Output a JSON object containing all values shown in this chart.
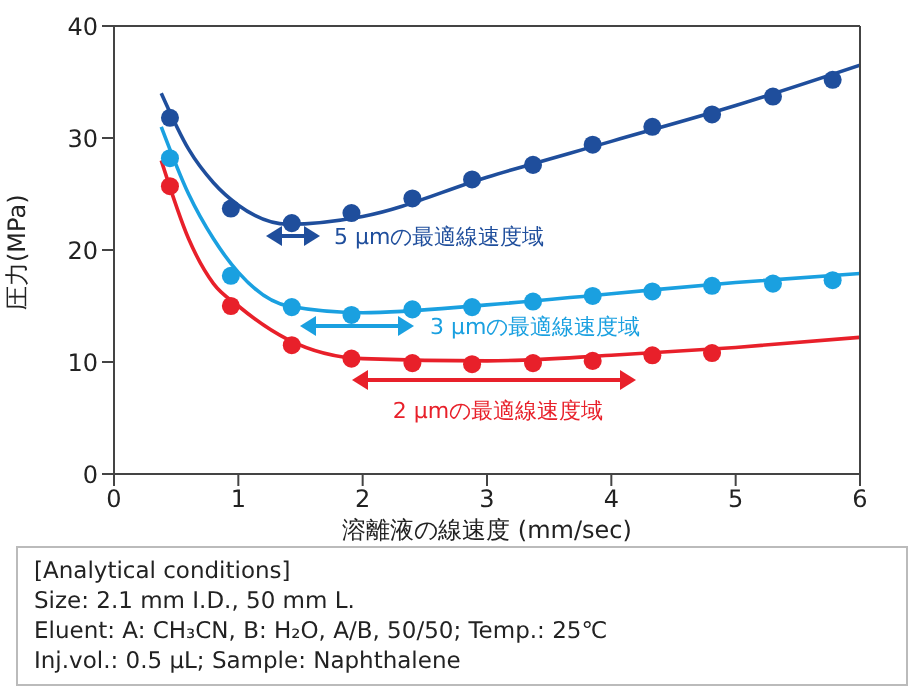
{
  "chart_data": {
    "type": "scatter",
    "xlabel": "溶離液の線速度 (mm/sec)",
    "ylabel": "圧力(MPa)",
    "xlim": [
      0,
      6
    ],
    "xticks": [
      0,
      1,
      2,
      3,
      4,
      5,
      6
    ],
    "ylim": [
      0,
      40
    ],
    "yticks": [
      0,
      10,
      20,
      30,
      40
    ],
    "series": [
      {
        "color": "#1f4e9c",
        "marker": "circle",
        "x": [
          0.45,
          0.94,
          1.43,
          1.91,
          2.4,
          2.88,
          3.37,
          3.85,
          4.33,
          4.81,
          5.3,
          5.78
        ],
        "values": [
          31.8,
          23.7,
          22.4,
          23.3,
          24.6,
          26.3,
          27.6,
          29.4,
          31.0,
          32.1,
          33.7,
          35.2
        ]
      },
      {
        "color": "#1aa0e0",
        "marker": "circle",
        "x": [
          0.45,
          0.94,
          1.43,
          1.91,
          2.4,
          2.88,
          3.37,
          3.85,
          4.33,
          4.81,
          5.3,
          5.78
        ],
        "values": [
          28.2,
          17.7,
          14.9,
          14.2,
          14.7,
          14.9,
          15.4,
          15.9,
          16.3,
          16.8,
          17.0,
          17.3
        ]
      },
      {
        "color": "#e8202a",
        "marker": "circle",
        "x": [
          0.45,
          0.94,
          1.43,
          1.91,
          2.4,
          2.88,
          3.37,
          3.85,
          4.33,
          4.81
        ],
        "values": [
          25.7,
          15.0,
          11.5,
          10.3,
          9.9,
          9.8,
          9.9,
          10.1,
          10.6,
          10.8
        ]
      },
      {
        "type": "line",
        "color": "#1f4e9c",
        "marker": "none",
        "x": [
          0.38,
          0.6,
          0.8,
          1.0,
          1.4,
          2,
          3,
          4,
          5,
          6
        ],
        "values": [
          34,
          29,
          26,
          24,
          22.3,
          23,
          26.5,
          29.7,
          32.9,
          36.5
        ]
      },
      {
        "type": "line",
        "color": "#1aa0e0",
        "marker": "none",
        "x": [
          0.38,
          0.6,
          0.8,
          1.0,
          1.4,
          2,
          3,
          4,
          5,
          6
        ],
        "values": [
          31,
          25,
          21,
          18,
          15,
          14.4,
          15.1,
          16.1,
          17.1,
          17.9
        ]
      },
      {
        "type": "line",
        "color": "#e8202a",
        "marker": "none",
        "x": [
          0.38,
          0.6,
          0.8,
          1.0,
          1.4,
          2,
          3,
          4,
          5,
          6
        ],
        "values": [
          28,
          21,
          17,
          15,
          12,
          10.3,
          10.1,
          10.6,
          11.3,
          12.2
        ]
      }
    ],
    "annotations": [
      "5 µmの最適線速度域",
      "3 µmの最適線速度域",
      "2 µmの最適線速度域",
      "[Analytical  conditions]",
      "Size: 2.1 mm I.D., 50 mm L.",
      "Eluent: A: CH₃CN, B: H₂O, A/B, 50/50; Temp.: 25℃",
      "Inj.vol.: 0.5 µL; Sample: Naphthalene"
    ]
  }
}
